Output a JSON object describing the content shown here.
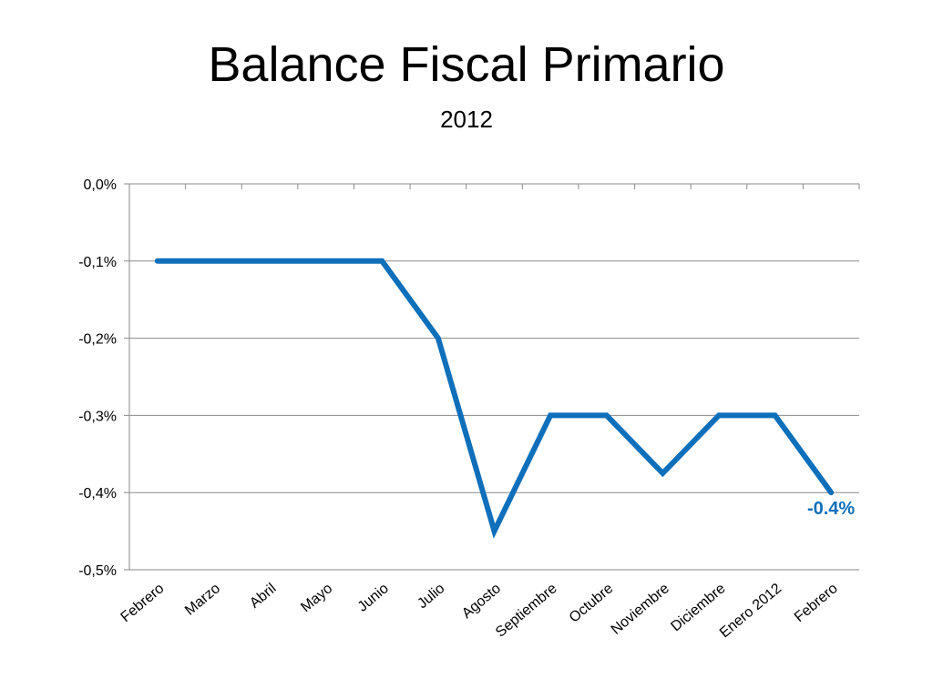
{
  "title": "Balance Fiscal Primario",
  "subtitle": "2012",
  "chart_data": {
    "type": "line",
    "categories": [
      "Febrero",
      "Marzo",
      "Abril",
      "Mayo",
      "Junio",
      "Julio",
      "Agosto",
      "Septiembre",
      "Octubre",
      "Noviembre",
      "Diciembre",
      "Enero 2012",
      "Febrero"
    ],
    "series": [
      {
        "values": [
          -0.1,
          -0.1,
          -0.1,
          -0.1,
          -0.1,
          -0.2,
          -0.45,
          -0.3,
          -0.3,
          -0.375,
          -0.3,
          -0.3,
          -0.4
        ]
      }
    ],
    "ylim": [
      -0.5,
      0.0
    ],
    "y_ticks": [
      0.0,
      -0.1,
      -0.2,
      -0.3,
      -0.4,
      -0.5
    ],
    "y_tick_labels": [
      "0,0%",
      "-0,1%",
      "-0,2%",
      "-0,3%",
      "-0,4%",
      "-0,5%"
    ],
    "data_labels": [
      {
        "index": 12,
        "text": "-0.4%"
      }
    ],
    "grid": true,
    "line_color": "#0e6fba",
    "label_color": "#0e6fba",
    "grid_color": "#8a8a8a"
  }
}
